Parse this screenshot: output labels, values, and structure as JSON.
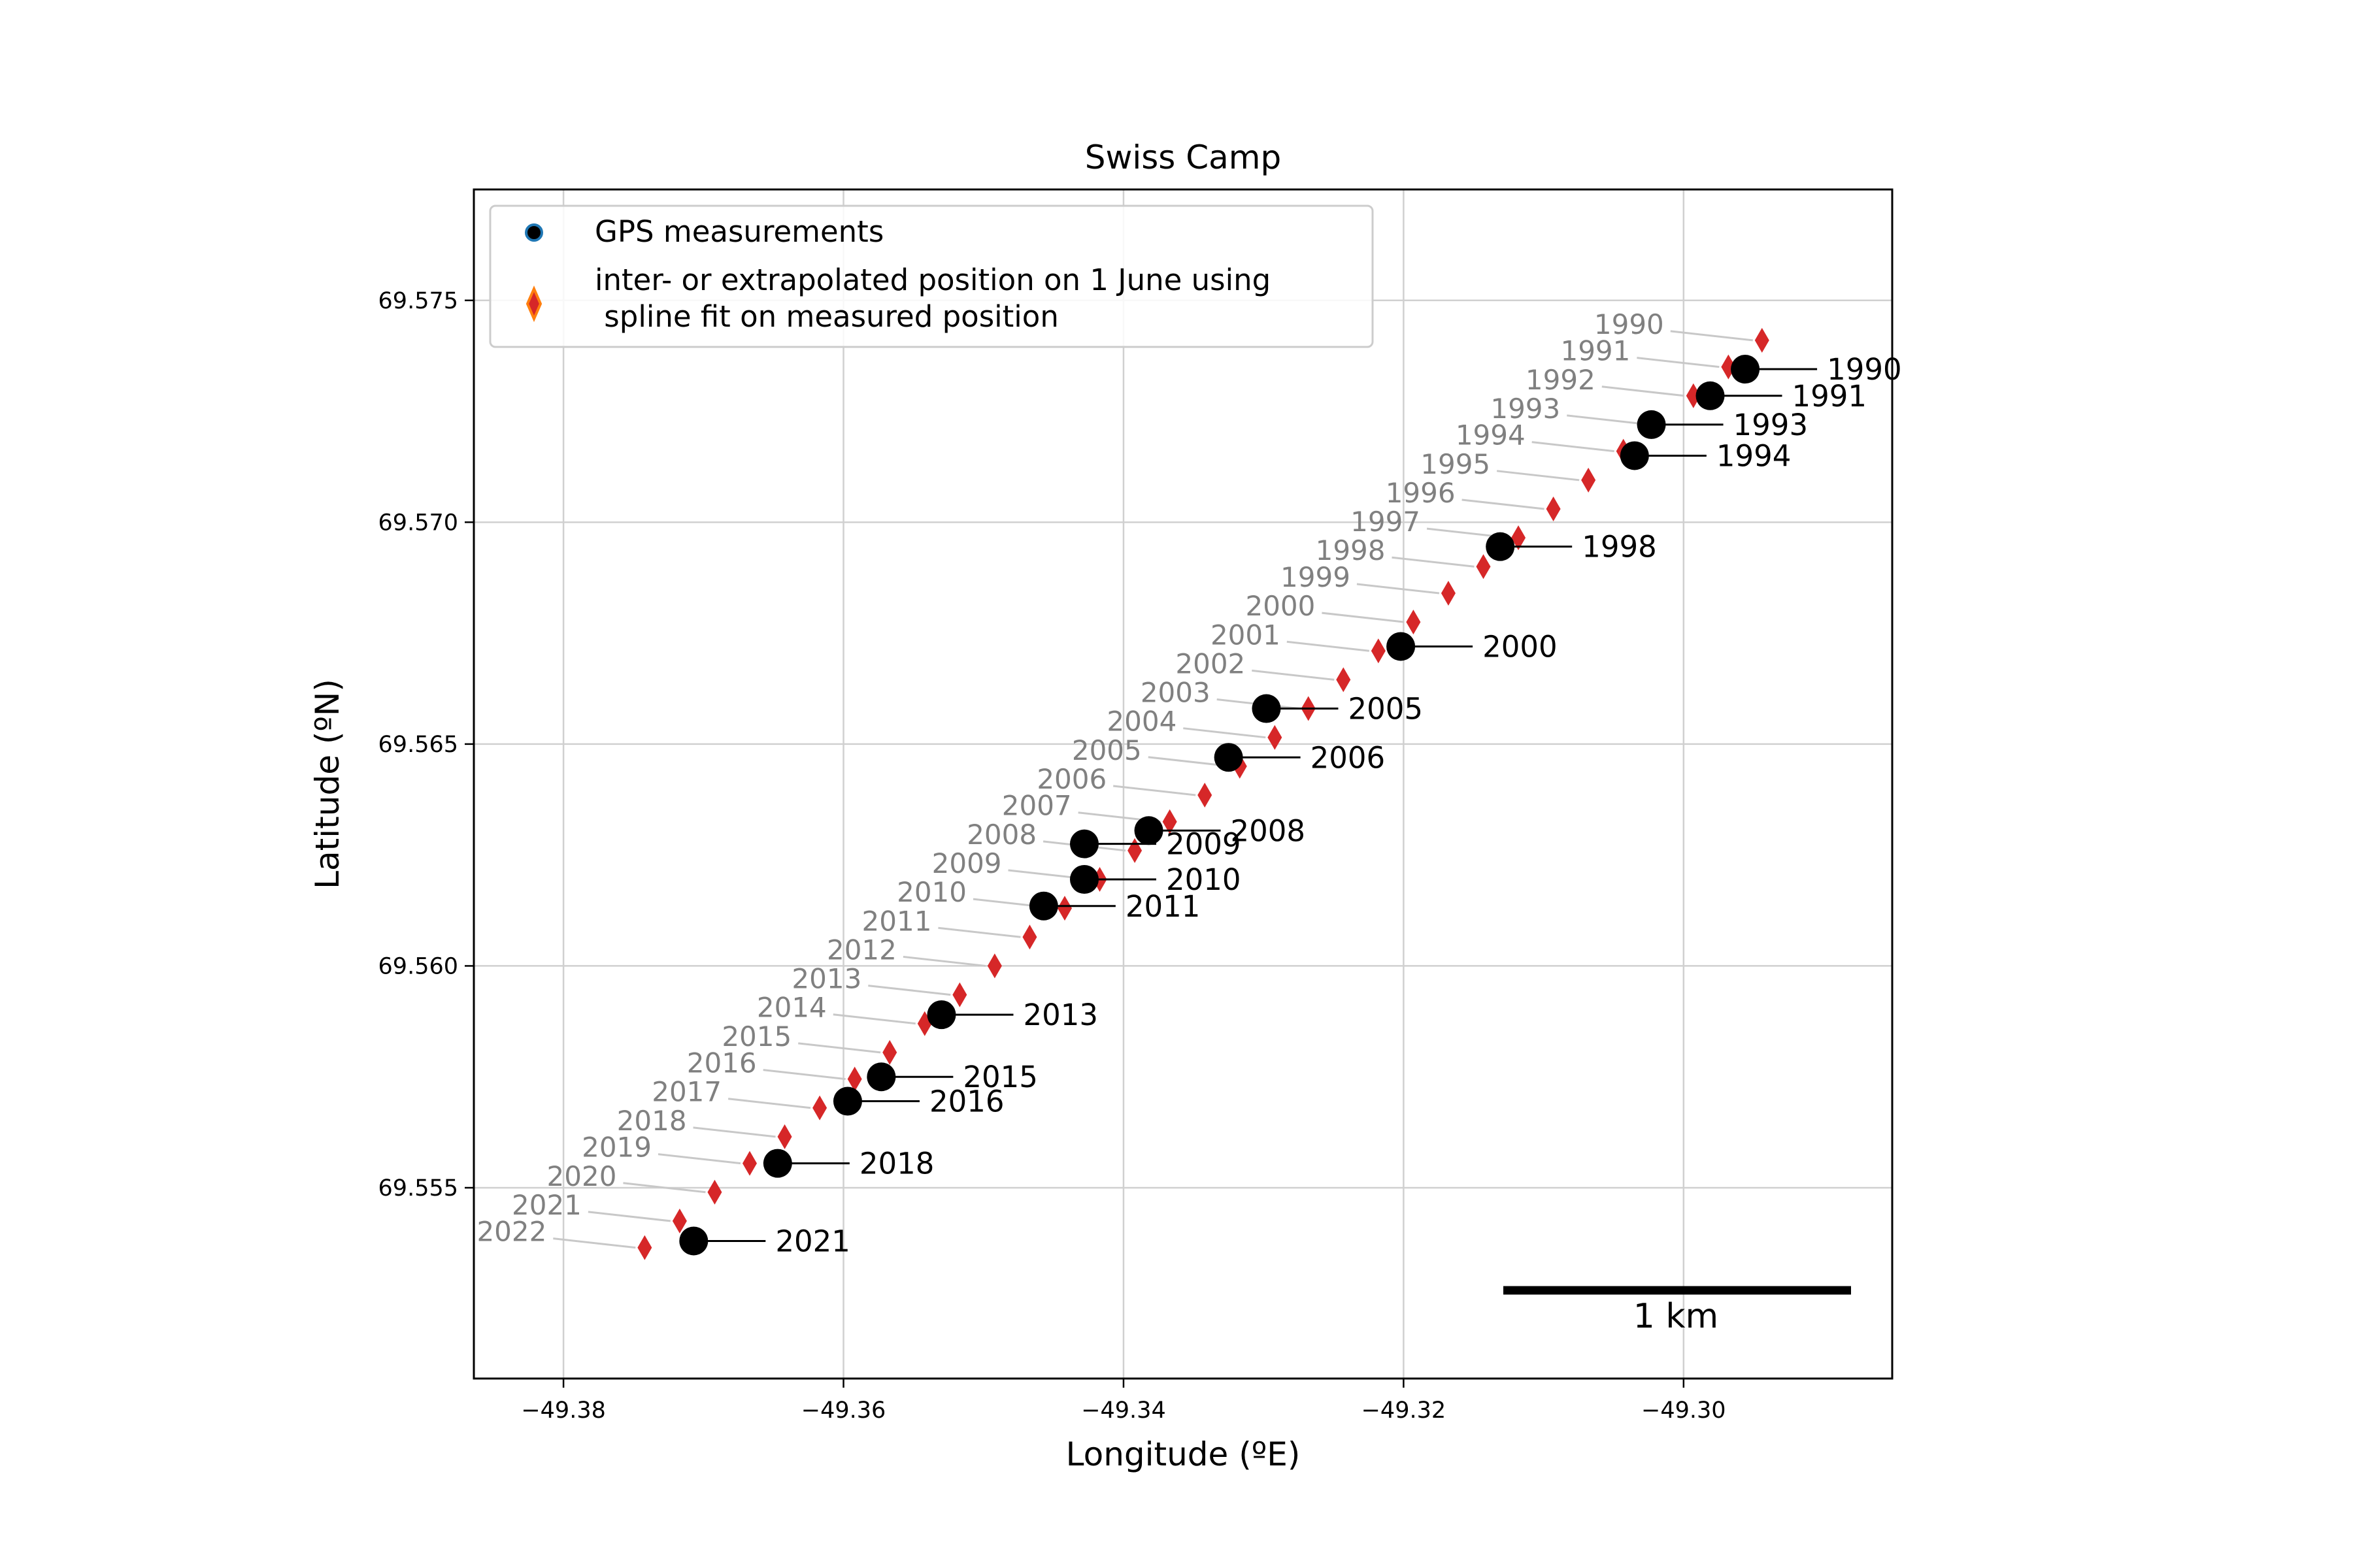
{
  "chart_data": {
    "type": "scatter",
    "title": "Swiss Camp",
    "xlabel": "Longitude (ºE)",
    "ylabel": "Latitude (ºN)",
    "xlim": [
      -49.3864,
      -49.2851
    ],
    "ylim": [
      69.5507,
      69.5775
    ],
    "xticks": [
      -49.38,
      -49.36,
      -49.34,
      -49.32,
      -49.3
    ],
    "xtick_labels": [
      "−49.38",
      "−49.36",
      "−49.34",
      "−49.32",
      "−49.30"
    ],
    "yticks": [
      69.555,
      69.56,
      69.565,
      69.57,
      69.575
    ],
    "ytick_labels": [
      "69.555",
      "69.560",
      "69.565",
      "69.570",
      "69.575"
    ],
    "grid": true,
    "legend_position": "upper-left",
    "colors": {
      "gps_marker": "#000000",
      "gps_marker_legend_edge": "#1f77b4",
      "spline_marker": "#d62728",
      "spline_marker_legend_edge": "#ff7f0e",
      "spline_label_text": "#808080",
      "spline_leader_line": "#c8c8c8",
      "gps_label_text": "#000000",
      "grid": "#d0d0d0"
    },
    "series": [
      {
        "name": "GPS measurements",
        "marker": "circle",
        "points": [
          {
            "label": "1990",
            "x": -49.2956,
            "y": 69.57345
          },
          {
            "label": "1991",
            "x": -49.2981,
            "y": 69.57285
          },
          {
            "label": "1993",
            "x": -49.3023,
            "y": 69.5722
          },
          {
            "label": "1994",
            "x": -49.3035,
            "y": 69.5715
          },
          {
            "label": "1998",
            "x": -49.3131,
            "y": 69.56945
          },
          {
            "label": "2000",
            "x": -49.3202,
            "y": 69.5672
          },
          {
            "label": "2005",
            "x": -49.3298,
            "y": 69.5658
          },
          {
            "label": "2006",
            "x": -49.3325,
            "y": 69.5647
          },
          {
            "label": "2008",
            "x": -49.3382,
            "y": 69.56305
          },
          {
            "label": "2009",
            "x": -49.3428,
            "y": 69.56275
          },
          {
            "label": "2010",
            "x": -49.3428,
            "y": 69.56195
          },
          {
            "label": "2011",
            "x": -49.3457,
            "y": 69.56135
          },
          {
            "label": "2013",
            "x": -49.353,
            "y": 69.5589
          },
          {
            "label": "2015",
            "x": -49.3573,
            "y": 69.5575
          },
          {
            "label": "2016",
            "x": -49.3597,
            "y": 69.55695
          },
          {
            "label": "2018",
            "x": -49.3647,
            "y": 69.55555
          },
          {
            "label": "2021",
            "x": -49.3707,
            "y": 69.5538
          }
        ]
      },
      {
        "name": "inter- or extrapolated position on 1 June using\n spline fit on measured position",
        "marker": "diamond",
        "points": [
          {
            "label": "1990",
            "x": -49.2944,
            "y": 69.5741
          },
          {
            "label": "1991",
            "x": -49.2968,
            "y": 69.5735
          },
          {
            "label": "1992",
            "x": -49.2993,
            "y": 69.57285
          },
          {
            "label": "1993",
            "x": -49.3018,
            "y": 69.5722
          },
          {
            "label": "1994",
            "x": -49.3043,
            "y": 69.5716
          },
          {
            "label": "1995",
            "x": -49.3068,
            "y": 69.57095
          },
          {
            "label": "1996",
            "x": -49.3093,
            "y": 69.5703
          },
          {
            "label": "1997",
            "x": -49.3118,
            "y": 69.56965
          },
          {
            "label": "1998",
            "x": -49.3143,
            "y": 69.569
          },
          {
            "label": "1999",
            "x": -49.3168,
            "y": 69.5684
          },
          {
            "label": "2000",
            "x": -49.3193,
            "y": 69.56775
          },
          {
            "label": "2001",
            "x": -49.3218,
            "y": 69.5671
          },
          {
            "label": "2002",
            "x": -49.3243,
            "y": 69.56645
          },
          {
            "label": "2003",
            "x": -49.3268,
            "y": 69.5658
          },
          {
            "label": "2004",
            "x": -49.3292,
            "y": 69.56515
          },
          {
            "label": "2005",
            "x": -49.3317,
            "y": 69.5645
          },
          {
            "label": "2006",
            "x": -49.3342,
            "y": 69.56385
          },
          {
            "label": "2007",
            "x": -49.3367,
            "y": 69.56325
          },
          {
            "label": "2008",
            "x": -49.3392,
            "y": 69.5626
          },
          {
            "label": "2009",
            "x": -49.3417,
            "y": 69.56195
          },
          {
            "label": "2010",
            "x": -49.3442,
            "y": 69.5613
          },
          {
            "label": "2011",
            "x": -49.3467,
            "y": 69.56065
          },
          {
            "label": "2012",
            "x": -49.3492,
            "y": 69.56
          },
          {
            "label": "2013",
            "x": -49.3517,
            "y": 69.55935
          },
          {
            "label": "2014",
            "x": -49.3542,
            "y": 69.5587
          },
          {
            "label": "2015",
            "x": -49.3567,
            "y": 69.55805
          },
          {
            "label": "2016",
            "x": -49.3592,
            "y": 69.55745
          },
          {
            "label": "2017",
            "x": -49.3617,
            "y": 69.5568
          },
          {
            "label": "2018",
            "x": -49.3642,
            "y": 69.55615
          },
          {
            "label": "2019",
            "x": -49.3667,
            "y": 69.55555
          },
          {
            "label": "2020",
            "x": -49.3692,
            "y": 69.5549
          },
          {
            "label": "2021",
            "x": -49.3717,
            "y": 69.55425
          },
          {
            "label": "2022",
            "x": -49.3742,
            "y": 69.55365
          }
        ]
      }
    ],
    "scale_bar": {
      "label": "1 km",
      "length_km": 1
    }
  }
}
